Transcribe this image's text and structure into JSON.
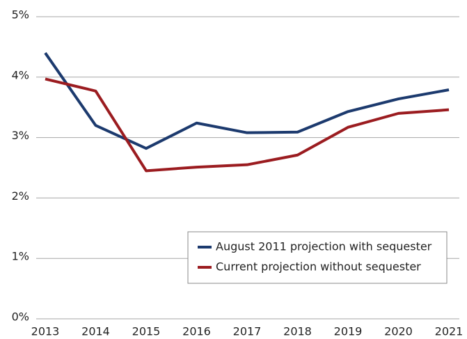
{
  "chart_data": {
    "type": "line",
    "categories": [
      "2013",
      "2014",
      "2015",
      "2016",
      "2017",
      "2018",
      "2019",
      "2020",
      "2021"
    ],
    "series": [
      {
        "name": "August 2011 projection with sequester",
        "color": "#1c3a6e",
        "values": [
          4.4,
          3.2,
          2.82,
          3.24,
          3.08,
          3.09,
          3.43,
          3.64,
          3.79
        ]
      },
      {
        "name": "Current projection without sequester",
        "color": "#9b1c20",
        "values": [
          3.97,
          3.77,
          2.45,
          2.51,
          2.55,
          2.71,
          3.17,
          3.4,
          3.46
        ]
      }
    ],
    "ylim": [
      0,
      5
    ],
    "yticks": [
      {
        "value": 0,
        "label": "0%"
      },
      {
        "value": 1,
        "label": "1%"
      },
      {
        "value": 2,
        "label": "2%"
      },
      {
        "value": 3,
        "label": "3%"
      },
      {
        "value": 4,
        "label": "4%"
      },
      {
        "value": 5,
        "label": "5%"
      }
    ],
    "grid": true,
    "legend": "lower right"
  }
}
